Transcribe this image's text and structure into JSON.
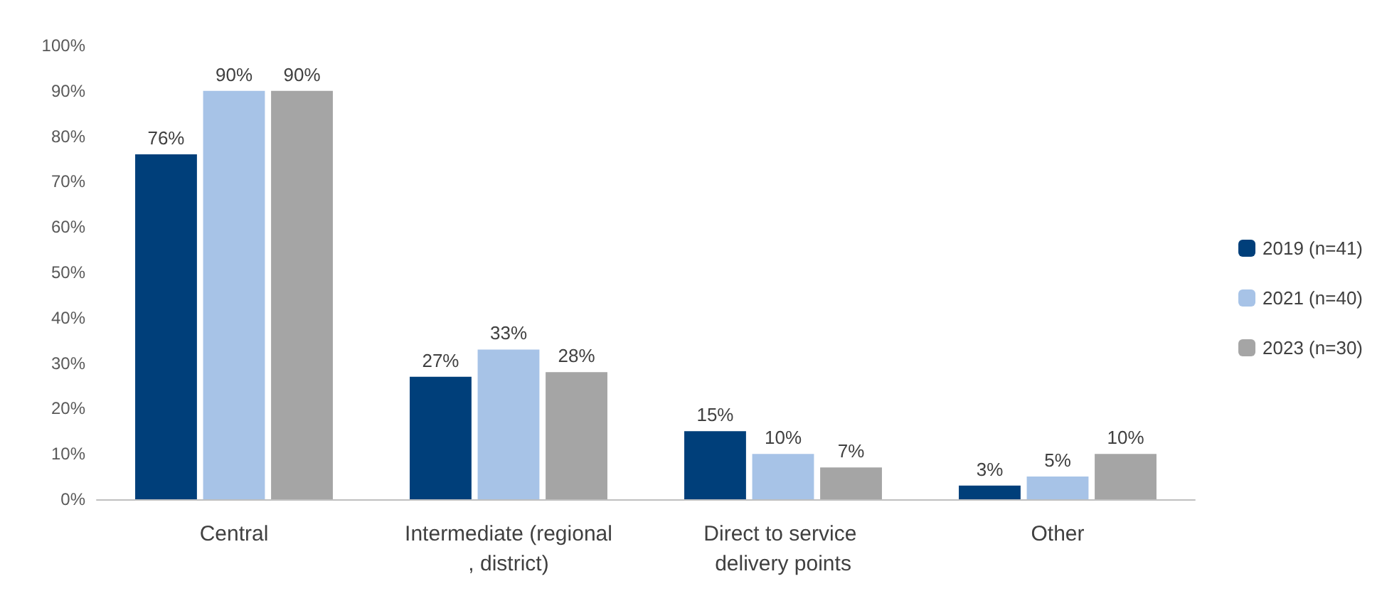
{
  "chart_data": {
    "type": "bar",
    "categories": [
      "Central",
      "Intermediate (regional, district)",
      "Direct to service delivery points",
      "Other"
    ],
    "series": [
      {
        "name": "2019 (n=41)",
        "color": "#003f7a",
        "values": [
          76,
          27,
          15,
          3
        ],
        "value_labels": [
          "76%",
          "27%",
          "15%",
          "3%"
        ]
      },
      {
        "name": "2021 (n=40)",
        "color": "#a7c3e7",
        "values": [
          90,
          33,
          10,
          5
        ],
        "value_labels": [
          "90%",
          "33%",
          "10%",
          "5%"
        ]
      },
      {
        "name": "2023 (n=30)",
        "color": "#a5a5a5",
        "values": [
          90,
          28,
          7,
          10
        ],
        "value_labels": [
          "90%",
          "28%",
          "7%",
          "10%"
        ]
      }
    ],
    "ylim": [
      0,
      100
    ],
    "yticks": [
      {
        "value": 0,
        "label": "0%"
      },
      {
        "value": 10,
        "label": "10%"
      },
      {
        "value": 20,
        "label": "20%"
      },
      {
        "value": 30,
        "label": "30%"
      },
      {
        "value": 40,
        "label": "40%"
      },
      {
        "value": 50,
        "label": "50%"
      },
      {
        "value": 60,
        "label": "60%"
      },
      {
        "value": 70,
        "label": "70%"
      },
      {
        "value": 80,
        "label": "80%"
      },
      {
        "value": 90,
        "label": "90%"
      },
      {
        "value": 100,
        "label": "100%"
      }
    ],
    "grid": false,
    "legend": "right"
  }
}
